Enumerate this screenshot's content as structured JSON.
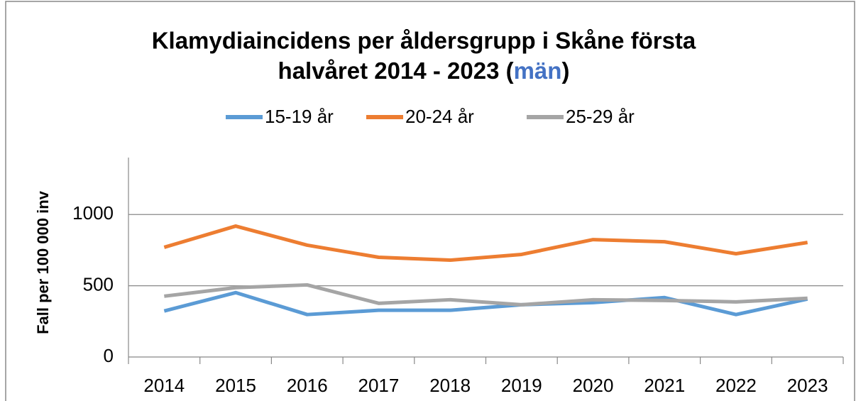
{
  "chart_data": {
    "type": "line",
    "title": [
      "Klamydiaincidens per åldersgrupp i Skåne första",
      "halvåret 2014 - 2023 (",
      "män",
      ")"
    ],
    "title_highlight_color": "#4472c4",
    "y_label": "Fall per 100 000 inv",
    "categories": [
      "2014",
      "2015",
      "2016",
      "2017",
      "2018",
      "2019",
      "2020",
      "2021",
      "2022",
      "2023"
    ],
    "series": [
      {
        "name": "15-19 år",
        "color": "#5b9bd5",
        "values": [
          323,
          452,
          298,
          328,
          328,
          367,
          382,
          417,
          298,
          407
        ]
      },
      {
        "name": "20-24 år",
        "color": "#ed7d31",
        "values": [
          770,
          919,
          785,
          700,
          680,
          720,
          824,
          809,
          725,
          804
        ]
      },
      {
        "name": "25-29 år",
        "color": "#a5a5a5",
        "values": [
          427,
          487,
          506,
          377,
          402,
          367,
          402,
          397,
          387,
          412
        ]
      }
    ],
    "ylim": [
      0,
      1400
    ],
    "yticks": [
      0,
      500,
      1000
    ],
    "grid": true,
    "legend": "top"
  }
}
